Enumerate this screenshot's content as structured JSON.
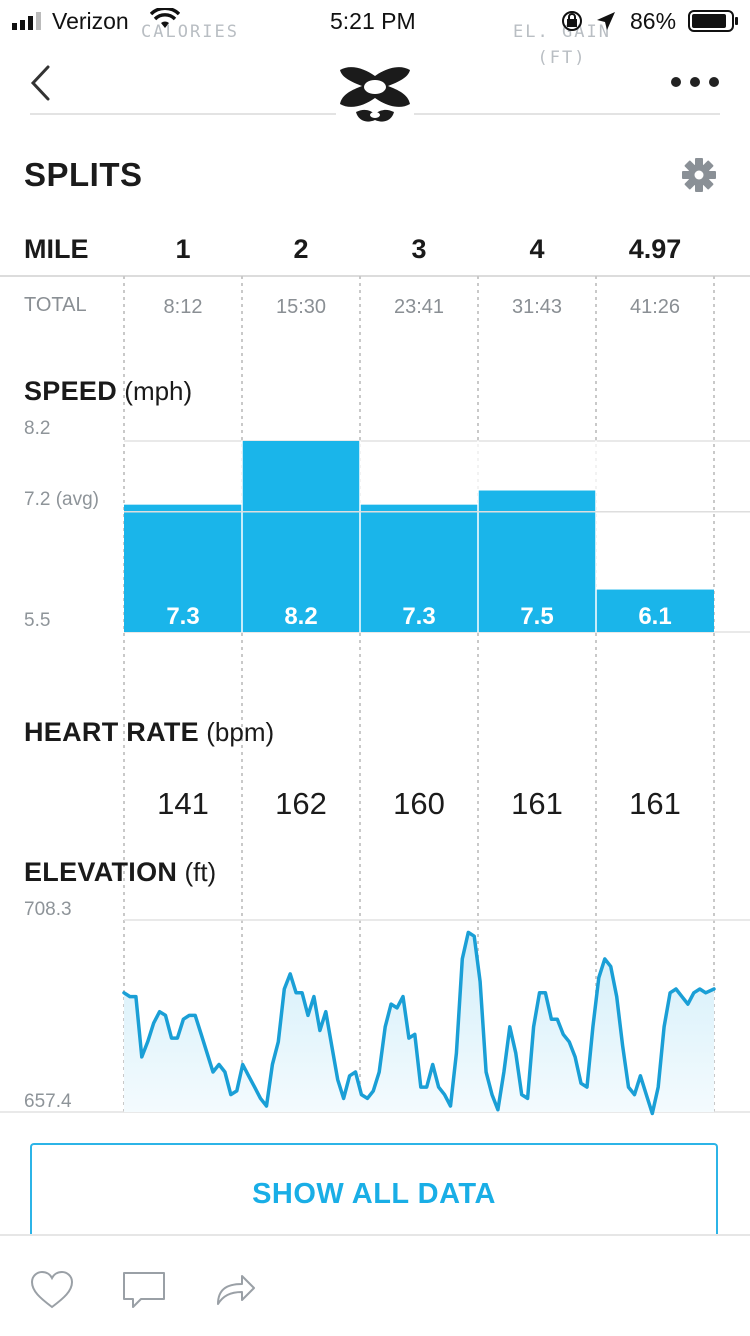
{
  "status_bar": {
    "carrier": "Verizon",
    "time": "5:21 PM",
    "battery": "86%",
    "ghost_left": "CALORIES",
    "ghost_right_1": "EL. GAIN",
    "ghost_right_2": "(FT)"
  },
  "icons": {
    "back": "chevron-left-icon",
    "more": "more-horizontal-icon",
    "logo": "under-armour-logo",
    "settings": "gear-icon",
    "like": "heart-icon",
    "comment": "comment-icon",
    "share": "share-icon"
  },
  "splits": {
    "title": "SPLITS",
    "mile_label": "MILE",
    "total_label": "TOTAL",
    "miles": [
      "1",
      "2",
      "3",
      "4",
      "4.97"
    ],
    "totals": [
      "8:12",
      "15:30",
      "23:41",
      "31:43",
      "41:26"
    ]
  },
  "speed": {
    "title": "SPEED",
    "unit": "(mph)",
    "axis_max": "8.2",
    "axis_avg": "7.2 (avg)",
    "axis_min": "5.5"
  },
  "heart_rate": {
    "title": "HEART RATE",
    "unit": "(bpm)",
    "values": [
      "141",
      "162",
      "160",
      "161",
      "161"
    ]
  },
  "elevation": {
    "title": "ELEVATION",
    "unit": "(ft)",
    "axis_max": "708.3",
    "axis_min": "657.4"
  },
  "buttons": {
    "show_all": "SHOW ALL DATA"
  },
  "colors": {
    "accent": "#1ab5ea",
    "bar": "#1ab5ea",
    "line": "#1a9fd6",
    "area": "#e3f4fb"
  },
  "chart_data": [
    {
      "type": "bar",
      "title": "SPEED (mph)",
      "categories": [
        "1",
        "2",
        "3",
        "4",
        "4.97"
      ],
      "values": [
        7.3,
        8.2,
        7.3,
        7.5,
        6.1
      ],
      "value_labels": [
        "7.3",
        "8.2",
        "7.3",
        "7.5",
        "6.1"
      ],
      "ylim": [
        5.5,
        8.2
      ],
      "avg": 7.2
    },
    {
      "type": "area",
      "title": "ELEVATION (ft)",
      "xlim": [
        0,
        4.97
      ],
      "ylim": [
        657.4,
        708.3
      ],
      "x": [
        0.0,
        0.05,
        0.1,
        0.15,
        0.2,
        0.25,
        0.3,
        0.35,
        0.4,
        0.45,
        0.5,
        0.55,
        0.6,
        0.65,
        0.7,
        0.75,
        0.8,
        0.85,
        0.9,
        0.95,
        1.0,
        1.05,
        1.1,
        1.15,
        1.2,
        1.25,
        1.3,
        1.35,
        1.4,
        1.45,
        1.5,
        1.55,
        1.6,
        1.65,
        1.7,
        1.75,
        1.8,
        1.85,
        1.9,
        1.95,
        2.0,
        2.05,
        2.1,
        2.15,
        2.2,
        2.25,
        2.3,
        2.35,
        2.4,
        2.45,
        2.5,
        2.55,
        2.6,
        2.65,
        2.7,
        2.75,
        2.8,
        2.85,
        2.9,
        2.95,
        3.0,
        3.05,
        3.1,
        3.15,
        3.2,
        3.25,
        3.3,
        3.35,
        3.4,
        3.45,
        3.5,
        3.55,
        3.6,
        3.65,
        3.7,
        3.75,
        3.8,
        3.85,
        3.9,
        3.95,
        4.0,
        4.05,
        4.1,
        4.15,
        4.2,
        4.25,
        4.3,
        4.35,
        4.4,
        4.45,
        4.5,
        4.55,
        4.6,
        4.65,
        4.7,
        4.75,
        4.8,
        4.85,
        4.9,
        4.97
      ],
      "y": [
        689,
        688,
        688,
        672,
        676,
        681,
        684,
        683,
        677,
        677,
        682,
        683,
        683,
        678,
        673,
        668,
        670,
        668,
        662,
        663,
        670,
        667,
        664,
        661,
        659,
        670,
        676,
        690,
        694,
        689,
        689,
        683,
        688,
        679,
        684,
        675,
        666,
        661,
        667,
        668,
        662,
        661,
        663,
        668,
        680,
        686,
        685,
        688,
        677,
        678,
        664,
        664,
        670,
        664,
        662,
        659,
        673,
        698,
        705,
        704,
        692,
        668,
        662,
        658,
        668,
        680,
        673,
        662,
        661,
        680,
        689,
        689,
        682,
        682,
        678,
        676,
        672,
        665,
        664,
        680,
        693,
        698,
        696,
        688,
        675,
        664,
        662,
        667,
        662,
        657,
        664,
        680,
        689,
        690,
        688,
        686,
        689,
        690,
        689,
        690
      ]
    }
  ]
}
